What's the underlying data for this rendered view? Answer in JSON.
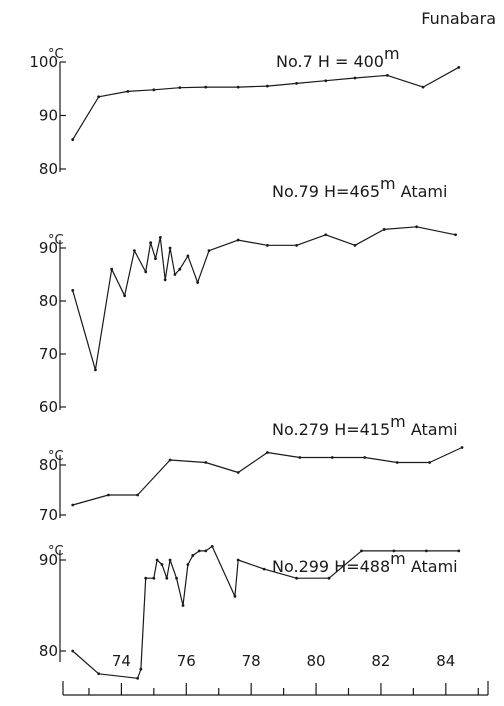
{
  "figure_label": "Funabara",
  "x_axis": {
    "range": [
      72.2,
      85.3
    ],
    "tick_labels": [
      "74",
      "76",
      "78",
      "80",
      "82",
      "84"
    ],
    "major_ticks": [
      74,
      76,
      78,
      80,
      82,
      84
    ],
    "minor_ticks": [
      73,
      75,
      77,
      79,
      81,
      83,
      85
    ]
  },
  "chart_data": [
    {
      "type": "line",
      "well": "No.7",
      "depth_label": "H = 400",
      "depth_unit": "m",
      "location": "",
      "ylim": [
        79,
        101
      ],
      "y_ticks": [
        80,
        90,
        100
      ],
      "y_tick_labels": [
        "80",
        "90",
        "100"
      ],
      "y_unit": "°C",
      "series": [
        {
          "x": [
            72.5,
            73.3,
            74.2,
            75.0,
            75.8,
            76.6,
            77.6,
            78.5,
            79.4,
            80.3,
            81.2,
            82.2,
            83.3,
            84.4
          ],
          "y": [
            85.5,
            93.5,
            94.5,
            94.8,
            95.2,
            95.3,
            95.3,
            95.5,
            96.0,
            96.5,
            97.0,
            97.5,
            95.3,
            99.0
          ]
        }
      ]
    },
    {
      "type": "line",
      "well": "No.79",
      "depth_label": "H=465",
      "depth_unit": "m",
      "location": "Atami",
      "ylim": [
        59,
        97
      ],
      "y_ticks": [
        60,
        70,
        80,
        90
      ],
      "y_tick_labels": [
        "60",
        "70",
        "80",
        "90"
      ],
      "y_unit": "°C",
      "series": [
        {
          "x": [
            72.5,
            73.2,
            73.7,
            74.1,
            74.4,
            74.75,
            74.9,
            75.05,
            75.2,
            75.35,
            75.5,
            75.65,
            75.8,
            76.05,
            76.35,
            76.7,
            77.6,
            78.5,
            79.4,
            80.3,
            81.2,
            82.1,
            83.1,
            84.3
          ],
          "y": [
            82,
            67,
            86,
            81,
            89.5,
            85.5,
            91,
            88,
            92,
            84,
            90,
            85,
            86,
            88.5,
            83.5,
            89.5,
            91.5,
            90.5,
            90.5,
            92.5,
            90.5,
            93.5,
            94,
            92.5
          ]
        }
      ]
    },
    {
      "type": "line",
      "well": "No.279",
      "depth_label": "H=415",
      "depth_unit": "m",
      "location": "Atami",
      "ylim": [
        69,
        86
      ],
      "y_ticks": [
        70,
        80
      ],
      "y_tick_labels": [
        "70",
        "80"
      ],
      "y_unit": "°C",
      "series": [
        {
          "x": [
            72.5,
            73.6,
            74.5,
            75.5,
            76.6,
            77.6,
            78.5,
            79.5,
            80.5,
            81.5,
            82.5,
            83.5,
            84.5
          ],
          "y": [
            72,
            74,
            74,
            81,
            80.5,
            78.5,
            82.5,
            81.5,
            81.5,
            81.5,
            80.5,
            80.5,
            83.5
          ]
        }
      ]
    },
    {
      "type": "line",
      "well": "No.299",
      "depth_label": "H=488",
      "depth_unit": "m",
      "location": "Atami",
      "ylim": [
        74,
        95
      ],
      "y_ticks": [
        80,
        90
      ],
      "y_tick_labels": [
        "80",
        "90"
      ],
      "y_unit": "°C",
      "series": [
        {
          "x": [
            72.5,
            73.3,
            74.5,
            74.6,
            74.75,
            75.0,
            75.1,
            75.25,
            75.4,
            75.5,
            75.7,
            75.9,
            76.05,
            76.2,
            76.4,
            76.6,
            76.8,
            77.5,
            77.6,
            78.4,
            79.4,
            80.4,
            81.4,
            82.4,
            83.4,
            84.4
          ],
          "y": [
            80,
            77.5,
            77,
            78,
            88,
            88,
            90,
            89.5,
            88,
            90,
            88,
            85,
            89.5,
            90.5,
            91,
            91,
            91.5,
            86,
            90,
            89,
            88,
            88,
            91,
            91,
            91,
            91
          ]
        }
      ]
    }
  ]
}
